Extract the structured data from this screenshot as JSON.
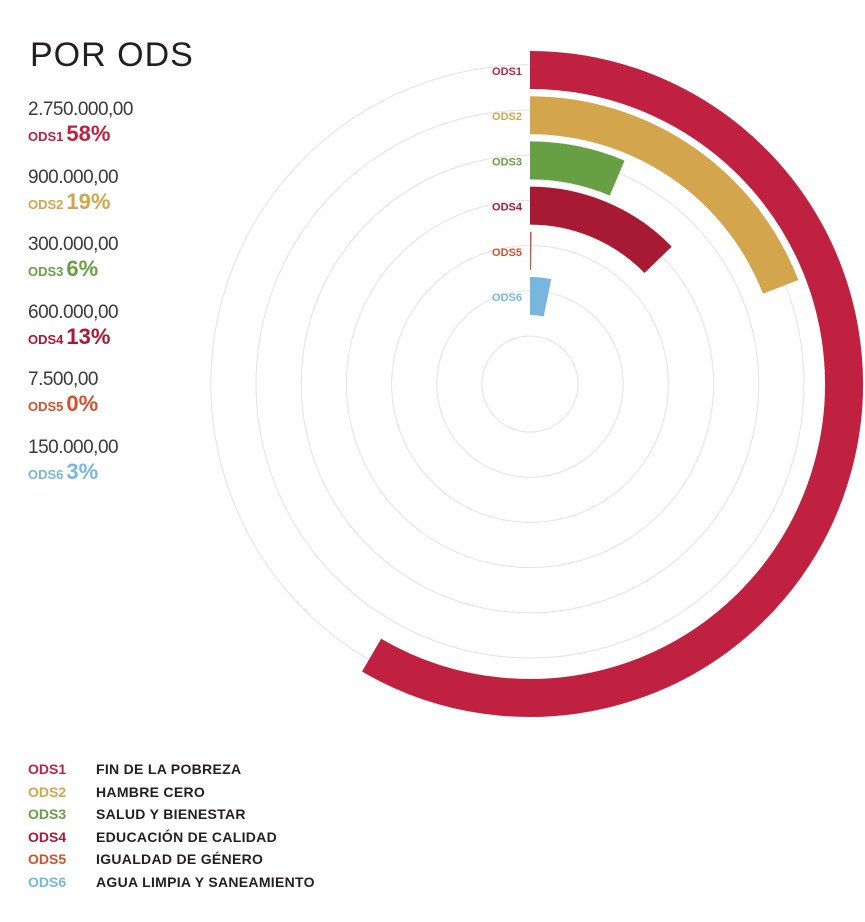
{
  "title": "POR ODS",
  "chart_data": {
    "type": "radial-bar",
    "title": "POR ODS",
    "categories": [
      "ODS1",
      "ODS2",
      "ODS3",
      "ODS4",
      "ODS5",
      "ODS6"
    ],
    "series": [
      {
        "name": "",
        "values": [
          2750000.0,
          900000.0,
          300000.0,
          600000.0,
          7500.0,
          150000.0
        ],
        "percent": [
          58,
          19,
          6,
          13,
          0,
          3
        ]
      }
    ],
    "stats": [
      {
        "code": "ODS1",
        "amount": "2.750.000,00",
        "pct": "58%",
        "color": "#c12140"
      },
      {
        "code": "ODS2",
        "amount": "900.000,00",
        "pct": "19%",
        "color": "#d3a54c"
      },
      {
        "code": "ODS3",
        "amount": "300.000,00",
        "pct": "6%",
        "color": "#67a044"
      },
      {
        "code": "ODS4",
        "amount": "600.000,00",
        "pct": "13%",
        "color": "#a81a34"
      },
      {
        "code": "ODS5",
        "amount": "7.500,00",
        "pct": "0%",
        "color": "#d2502e"
      },
      {
        "code": "ODS6",
        "amount": "150.000,00",
        "pct": "3%",
        "color": "#78b7dd"
      }
    ],
    "legend": [
      {
        "code": "ODS1",
        "label": "FIN DE LA POBREZA",
        "color": "#c12140"
      },
      {
        "code": "ODS2",
        "label": "HAMBRE CERO",
        "color": "#d3a54c"
      },
      {
        "code": "ODS3",
        "label": "SALUD Y BIENESTAR",
        "color": "#67a044"
      },
      {
        "code": "ODS4",
        "label": "EDUCACIÓN DE CALIDAD",
        "color": "#a81a34"
      },
      {
        "code": "ODS5",
        "label": "IGUALDAD DE GÉNERO",
        "color": "#d2502e"
      },
      {
        "code": "ODS6",
        "label": "AGUA LIMPIA Y SANEAMIENTO",
        "color": "#78b7dd"
      }
    ],
    "grid": true,
    "legend_position": "bottom-left"
  }
}
